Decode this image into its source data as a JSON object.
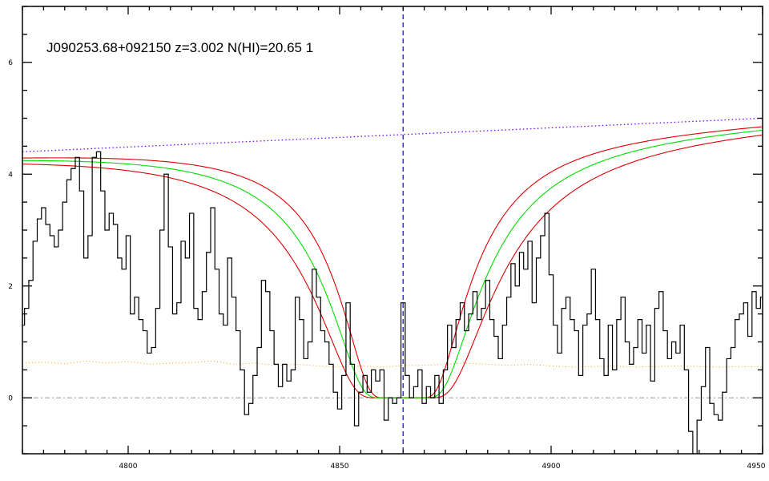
{
  "chart_data": {
    "type": "line",
    "title": "J090253.68+092150 z=3.002 N(HI)=20.65 1",
    "xlabel": "",
    "ylabel": "",
    "xlim": [
      4775,
      4950
    ],
    "ylim": [
      -1,
      7
    ],
    "x_ticks": [
      4800,
      4850,
      4900,
      4950
    ],
    "x_tick_labels": [
      "4800",
      "4850",
      "4900",
      "4950"
    ],
    "y_ticks": [
      0,
      2,
      4,
      6
    ],
    "y_tick_labels": [
      "0",
      "2",
      "4",
      "6"
    ],
    "grid": false,
    "legend": "none",
    "center_line_x": 4865,
    "zero_line_y": 0,
    "colors": {
      "flux": "#000000",
      "model": "#00dd00",
      "model_bounds": "#dd0000",
      "continuum": "#7a00ff",
      "error": "#ff9900",
      "center_line": "#0000cc",
      "zero_line": "#999999"
    },
    "model": {
      "center": 4865,
      "nhi_log": 20.65,
      "nhi_log_low": 20.5,
      "nhi_log_high": 20.8
    },
    "continuum": {
      "x": [
        4775,
        4950
      ],
      "y": [
        4.4,
        5.0
      ]
    },
    "error_level": [
      [
        4775,
        0.62
      ],
      [
        4780,
        0.64
      ],
      [
        4785,
        0.61
      ],
      [
        4790,
        0.66
      ],
      [
        4795,
        0.62
      ],
      [
        4800,
        0.65
      ],
      [
        4805,
        0.6
      ],
      [
        4810,
        0.62
      ],
      [
        4815,
        0.63
      ],
      [
        4820,
        0.66
      ],
      [
        4825,
        0.6
      ],
      [
        4830,
        0.62
      ],
      [
        4835,
        0.58
      ],
      [
        4840,
        0.6
      ],
      [
        4845,
        0.57
      ],
      [
        4850,
        0.55
      ],
      [
        4855,
        0.57
      ],
      [
        4860,
        0.55
      ],
      [
        4865,
        0.58
      ],
      [
        4870,
        0.58
      ],
      [
        4875,
        0.6
      ],
      [
        4880,
        0.62
      ],
      [
        4885,
        0.6
      ],
      [
        4890,
        0.58
      ],
      [
        4895,
        0.6
      ],
      [
        4900,
        0.57
      ],
      [
        4905,
        0.55
      ],
      [
        4910,
        0.56
      ],
      [
        4915,
        0.57
      ],
      [
        4920,
        0.55
      ],
      [
        4925,
        0.56
      ],
      [
        4930,
        0.57
      ],
      [
        4935,
        0.56
      ],
      [
        4940,
        0.55
      ],
      [
        4945,
        0.56
      ],
      [
        4950,
        0.55
      ]
    ],
    "flux": [
      [
        4775,
        1.3
      ],
      [
        4776,
        1.6
      ],
      [
        4777,
        2.1
      ],
      [
        4778,
        2.8
      ],
      [
        4779,
        3.2
      ],
      [
        4780,
        3.4
      ],
      [
        4781,
        3.1
      ],
      [
        4782,
        2.9
      ],
      [
        4783,
        2.7
      ],
      [
        4784,
        3.0
      ],
      [
        4785,
        3.5
      ],
      [
        4786,
        3.9
      ],
      [
        4787,
        4.1
      ],
      [
        4788,
        4.3
      ],
      [
        4789,
        3.7
      ],
      [
        4790,
        2.5
      ],
      [
        4791,
        2.9
      ],
      [
        4792,
        4.3
      ],
      [
        4793,
        4.4
      ],
      [
        4794,
        3.7
      ],
      [
        4795,
        3.0
      ],
      [
        4796,
        3.3
      ],
      [
        4797,
        3.1
      ],
      [
        4798,
        2.5
      ],
      [
        4799,
        2.3
      ],
      [
        4800,
        2.9
      ],
      [
        4801,
        1.5
      ],
      [
        4802,
        1.8
      ],
      [
        4803,
        1.4
      ],
      [
        4804,
        1.2
      ],
      [
        4805,
        0.8
      ],
      [
        4806,
        0.9
      ],
      [
        4807,
        1.6
      ],
      [
        4808,
        3.0
      ],
      [
        4809,
        4.0
      ],
      [
        4810,
        2.7
      ],
      [
        4811,
        1.5
      ],
      [
        4812,
        1.7
      ],
      [
        4813,
        2.8
      ],
      [
        4814,
        2.5
      ],
      [
        4815,
        3.3
      ],
      [
        4816,
        1.6
      ],
      [
        4817,
        1.4
      ],
      [
        4818,
        1.9
      ],
      [
        4819,
        2.6
      ],
      [
        4820,
        3.4
      ],
      [
        4821,
        2.3
      ],
      [
        4822,
        1.5
      ],
      [
        4823,
        1.3
      ],
      [
        4824,
        2.5
      ],
      [
        4825,
        1.8
      ],
      [
        4826,
        1.2
      ],
      [
        4827,
        0.5
      ],
      [
        4828,
        -0.3
      ],
      [
        4829,
        -0.1
      ],
      [
        4830,
        0.4
      ],
      [
        4831,
        0.9
      ],
      [
        4832,
        2.1
      ],
      [
        4833,
        1.9
      ],
      [
        4834,
        1.2
      ],
      [
        4835,
        0.6
      ],
      [
        4836,
        0.2
      ],
      [
        4837,
        0.6
      ],
      [
        4838,
        0.3
      ],
      [
        4839,
        0.5
      ],
      [
        4840,
        1.8
      ],
      [
        4841,
        1.4
      ],
      [
        4842,
        0.7
      ],
      [
        4843,
        1.0
      ],
      [
        4844,
        2.3
      ],
      [
        4845,
        1.8
      ],
      [
        4846,
        1.2
      ],
      [
        4847,
        1.0
      ],
      [
        4848,
        0.6
      ],
      [
        4849,
        0.1
      ],
      [
        4850,
        -0.2
      ],
      [
        4851,
        0.4
      ],
      [
        4852,
        1.7
      ],
      [
        4853,
        0.6
      ],
      [
        4854,
        -0.5
      ],
      [
        4855,
        0.1
      ],
      [
        4856,
        0.4
      ],
      [
        4857,
        0.1
      ],
      [
        4858,
        0.5
      ],
      [
        4859,
        0.3
      ],
      [
        4860,
        0.5
      ],
      [
        4861,
        -0.4
      ],
      [
        4862,
        0.0
      ],
      [
        4863,
        -0.1
      ],
      [
        4864,
        0.0
      ],
      [
        4865,
        1.7
      ],
      [
        4866,
        0.4
      ],
      [
        4867,
        0.0
      ],
      [
        4868,
        0.2
      ],
      [
        4869,
        0.5
      ],
      [
        4870,
        -0.1
      ],
      [
        4871,
        0.2
      ],
      [
        4872,
        0.0
      ],
      [
        4873,
        0.4
      ],
      [
        4874,
        -0.1
      ],
      [
        4875,
        0.5
      ],
      [
        4876,
        1.3
      ],
      [
        4877,
        0.9
      ],
      [
        4878,
        1.4
      ],
      [
        4879,
        1.7
      ],
      [
        4880,
        1.2
      ],
      [
        4881,
        1.5
      ],
      [
        4882,
        1.9
      ],
      [
        4883,
        1.4
      ],
      [
        4884,
        1.6
      ],
      [
        4885,
        2.1
      ],
      [
        4886,
        1.4
      ],
      [
        4887,
        1.1
      ],
      [
        4888,
        0.7
      ],
      [
        4889,
        1.3
      ],
      [
        4890,
        1.8
      ],
      [
        4891,
        2.4
      ],
      [
        4892,
        2.0
      ],
      [
        4893,
        2.6
      ],
      [
        4894,
        2.3
      ],
      [
        4895,
        2.8
      ],
      [
        4896,
        1.7
      ],
      [
        4897,
        2.5
      ],
      [
        4898,
        2.9
      ],
      [
        4899,
        3.3
      ],
      [
        4900,
        2.2
      ],
      [
        4901,
        1.3
      ],
      [
        4902,
        0.8
      ],
      [
        4903,
        1.6
      ],
      [
        4904,
        1.8
      ],
      [
        4905,
        1.4
      ],
      [
        4906,
        1.2
      ],
      [
        4907,
        0.4
      ],
      [
        4908,
        1.3
      ],
      [
        4909,
        1.5
      ],
      [
        4910,
        2.3
      ],
      [
        4911,
        1.4
      ],
      [
        4912,
        0.7
      ],
      [
        4913,
        0.4
      ],
      [
        4914,
        1.3
      ],
      [
        4915,
        0.5
      ],
      [
        4916,
        1.4
      ],
      [
        4917,
        1.8
      ],
      [
        4918,
        1.0
      ],
      [
        4919,
        0.6
      ],
      [
        4920,
        0.9
      ],
      [
        4921,
        1.4
      ],
      [
        4922,
        0.8
      ],
      [
        4923,
        1.3
      ],
      [
        4924,
        0.3
      ],
      [
        4925,
        1.6
      ],
      [
        4926,
        1.9
      ],
      [
        4927,
        1.2
      ],
      [
        4928,
        0.7
      ],
      [
        4929,
        1.0
      ],
      [
        4930,
        0.8
      ],
      [
        4931,
        1.3
      ],
      [
        4932,
        0.5
      ],
      [
        4933,
        -0.6
      ],
      [
        4934,
        -1.3
      ],
      [
        4935,
        -0.4
      ],
      [
        4936,
        0.2
      ],
      [
        4937,
        0.9
      ],
      [
        4938,
        -0.1
      ],
      [
        4939,
        -0.3
      ],
      [
        4940,
        -0.4
      ],
      [
        4941,
        0.1
      ],
      [
        4942,
        0.7
      ],
      [
        4943,
        0.9
      ],
      [
        4944,
        1.4
      ],
      [
        4945,
        1.5
      ],
      [
        4946,
        1.7
      ],
      [
        4947,
        1.1
      ],
      [
        4948,
        1.9
      ],
      [
        4949,
        1.6
      ],
      [
        4950,
        1.8
      ]
    ]
  }
}
